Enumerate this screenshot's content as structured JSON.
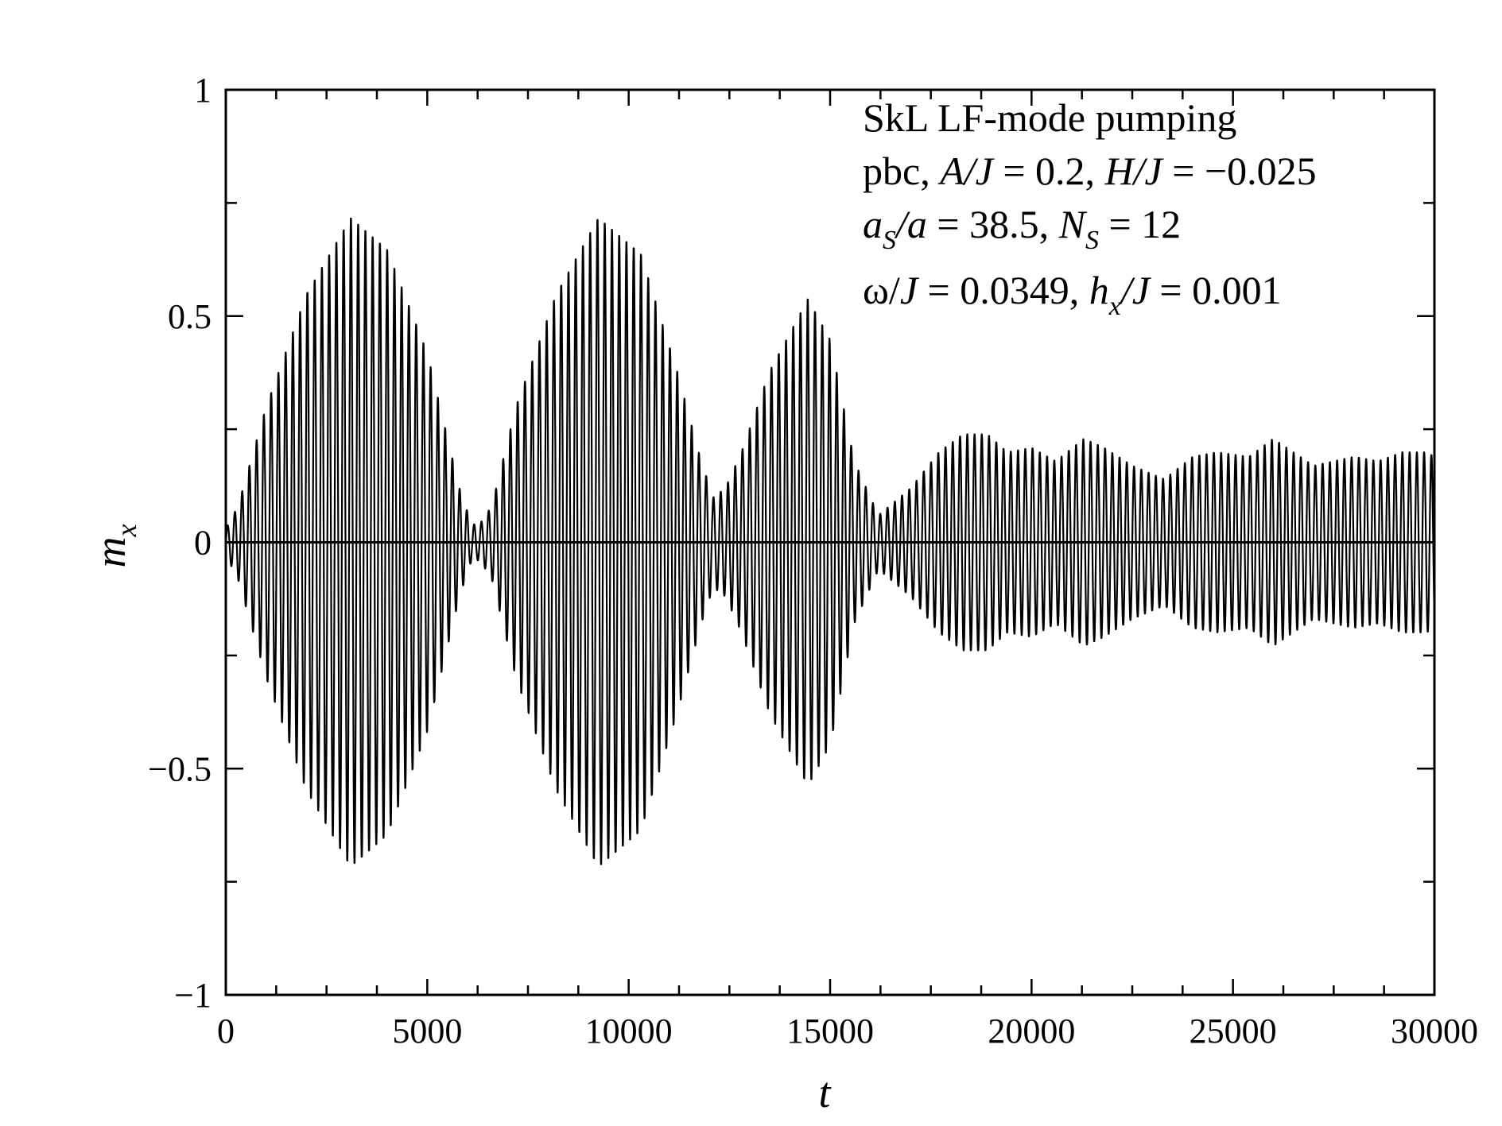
{
  "chart_data": {
    "type": "line",
    "title": "",
    "xlabel": "t",
    "ylabel": {
      "main": "m",
      "sub": "x"
    },
    "xlim": [
      0,
      30000
    ],
    "ylim": [
      -1,
      1
    ],
    "x_ticks": [
      0,
      5000,
      10000,
      15000,
      20000,
      25000,
      30000
    ],
    "x_tick_labels": [
      "0",
      "5000",
      "10000",
      "15000",
      "20000",
      "25000",
      "30000"
    ],
    "y_ticks": [
      -1,
      -0.5,
      0,
      0.5,
      1
    ],
    "y_tick_labels": [
      "−1",
      "−0.5",
      "0",
      "0.5",
      "1"
    ],
    "grid": false,
    "line_color": "#000000",
    "series": [
      {
        "oscillation_period": 180,
        "envelope": {
          "t": [
            0,
            300,
            1000,
            2000,
            3100,
            4000,
            5000,
            5800,
            6100,
            6300,
            6600,
            7200,
            8200,
            9250,
            10300,
            11200,
            11800,
            12100,
            12400,
            12800,
            13500,
            14450,
            15000,
            15600,
            16200,
            17000,
            17700,
            18300,
            18900,
            19400,
            20000,
            20600,
            21300,
            21800,
            22500,
            23300,
            24000,
            24600,
            25400,
            26000,
            26500,
            27000,
            27500,
            28000,
            28600,
            29200,
            29800,
            30000
          ],
          "amplitude": [
            0.03,
            0.08,
            0.3,
            0.55,
            0.72,
            0.65,
            0.42,
            0.12,
            0.04,
            0.04,
            0.08,
            0.3,
            0.55,
            0.72,
            0.64,
            0.38,
            0.18,
            0.1,
            0.12,
            0.2,
            0.38,
            0.54,
            0.45,
            0.18,
            0.06,
            0.12,
            0.2,
            0.24,
            0.24,
            0.2,
            0.21,
            0.18,
            0.23,
            0.21,
            0.17,
            0.14,
            0.19,
            0.2,
            0.19,
            0.23,
            0.2,
            0.17,
            0.18,
            0.19,
            0.18,
            0.2,
            0.2,
            0.19
          ]
        }
      }
    ]
  },
  "annotation": {
    "line1": "SkL LF-mode pumping",
    "line2": {
      "a": "pbc, ",
      "b": "A/J",
      "c": " = 0.2, ",
      "d": "H/J",
      "e": " = −0.025"
    },
    "line3": {
      "a": "a",
      "a_sub": "S",
      "b": "/a",
      "c": " = 38.5, ",
      "d": "N",
      "d_sub": "S",
      "e": " = 12"
    },
    "line4": {
      "a": "ω/",
      "b": "J",
      "c": " = 0.0349, ",
      "d": "h",
      "d_sub": "x",
      "e": "/J",
      "f": " = 0.001"
    }
  }
}
